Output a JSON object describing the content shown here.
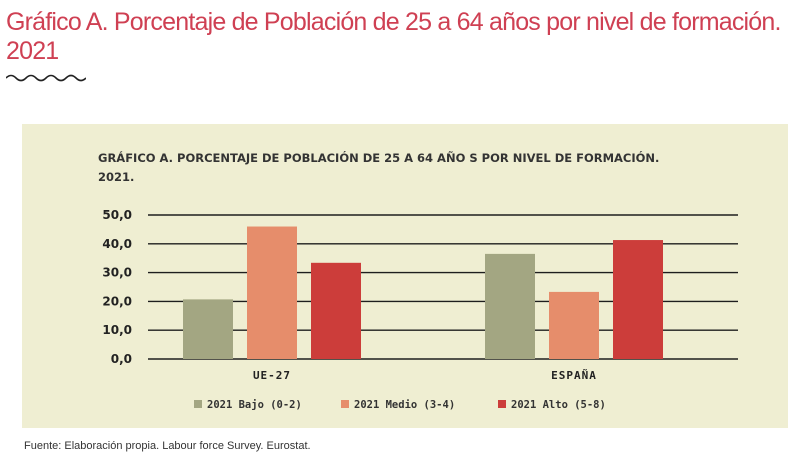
{
  "heading": {
    "title": "Gráfico A. Porcentaje de Población de 25 a 64 años por nivel de formación.  2021"
  },
  "source": "Fuente: Elaboración propia. Labour force Survey. Eurostat.",
  "colors": {
    "title": "#cf4053",
    "panel_bg": "#efeed2",
    "bajo": "#a3a682",
    "medio": "#e68d6b",
    "alto": "#cc3d3a"
  },
  "chart_data": {
    "type": "bar",
    "title_line1": "GRÁFICO A. PORCENTAJE DE POBLACIÓN DE 25 A 64 AÑO S POR NIVEL DE FORMACIÓN.",
    "title_line2": "2021.",
    "categories": [
      "UE-27",
      "ESPAÑA"
    ],
    "series": [
      {
        "name": "2021 Bajo (0-2)",
        "values": [
          20.7,
          36.5
        ]
      },
      {
        "name": "2021 Medio (3-4)",
        "values": [
          46.0,
          23.3
        ]
      },
      {
        "name": "2021 Alto (5-8)",
        "values": [
          33.4,
          41.3
        ]
      }
    ],
    "ylim": [
      0,
      50
    ],
    "yticks": [
      "0,0",
      "10,0",
      "20,0",
      "30,0",
      "40,0",
      "50,0"
    ],
    "grid": true,
    "legend_position": "bottom"
  }
}
